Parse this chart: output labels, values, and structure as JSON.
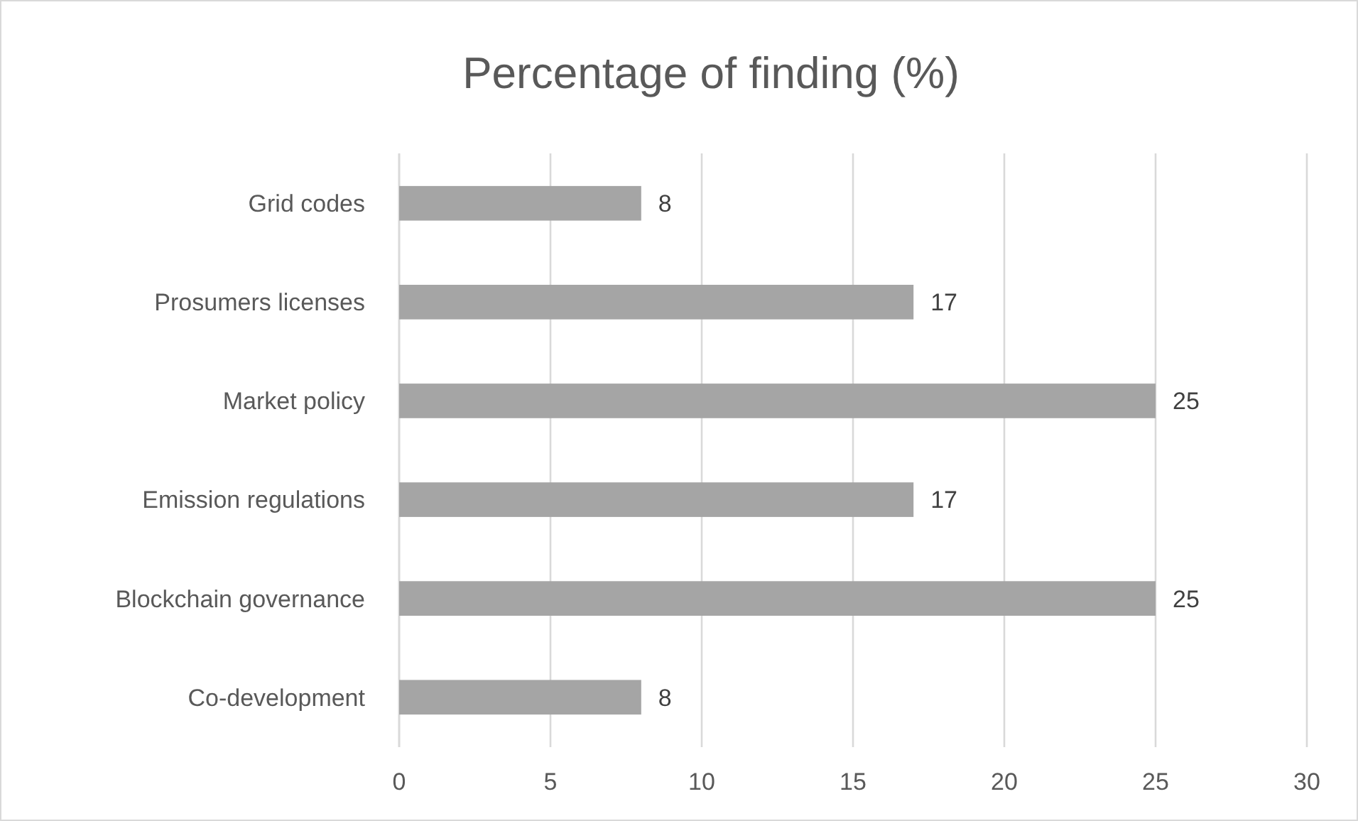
{
  "chart_data": {
    "type": "bar",
    "title": "Percentage of finding (%)",
    "orientation": "horizontal",
    "categories": [
      "Grid codes",
      "Prosumers licenses",
      "Market policy",
      "Emission regulations",
      "Blockchain governance",
      "Co-development"
    ],
    "values": [
      8,
      17,
      25,
      17,
      25,
      8
    ],
    "color": "#a5a5a5",
    "xlim": [
      0,
      30
    ],
    "xticks": [
      0,
      5,
      10,
      15,
      20,
      25,
      30
    ],
    "grid": "x",
    "data_labels": true
  }
}
